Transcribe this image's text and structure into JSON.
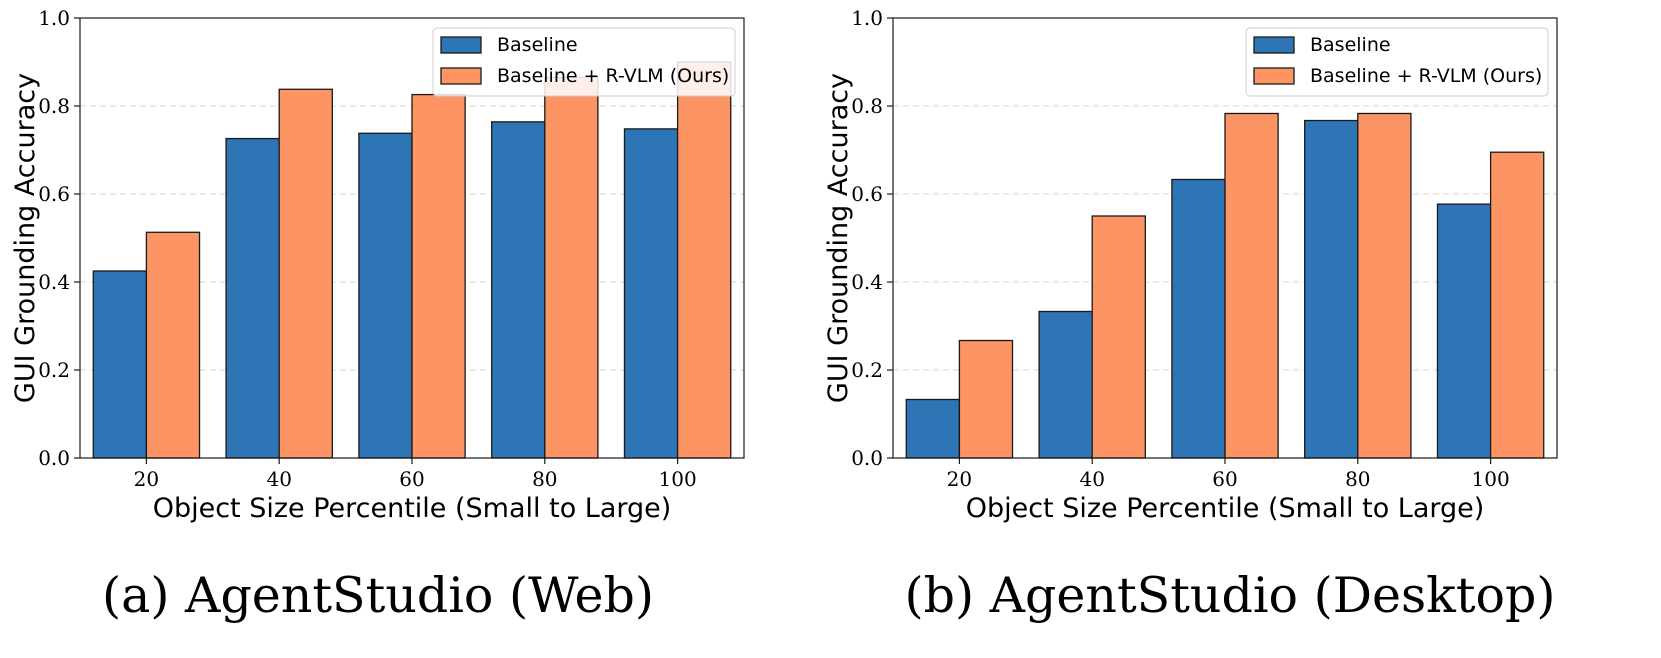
{
  "chart_data": [
    {
      "type": "bar",
      "id": "web",
      "categories": [
        "20",
        "40",
        "60",
        "80",
        "100"
      ],
      "series": [
        {
          "name": "Baseline",
          "color": "#2e75b6",
          "values": [
            0.425,
            0.726,
            0.738,
            0.764,
            0.748
          ]
        },
        {
          "name": "Baseline + R-VLM (Ours)",
          "color": "#fc9463",
          "values": [
            0.513,
            0.838,
            0.826,
            0.865,
            0.9
          ]
        }
      ],
      "xlabel": "Object Size Percentile (Small to Large)",
      "ylabel": "GUI Grounding Accuracy",
      "ylim": [
        0.0,
        1.0
      ],
      "yticks": [
        "0.0",
        "0.2",
        "0.4",
        "0.6",
        "0.8",
        "1.0"
      ],
      "grid": true,
      "legend_position": "top-right",
      "caption": "(a) AgentStudio (Web)"
    },
    {
      "type": "bar",
      "id": "desktop",
      "categories": [
        "20",
        "40",
        "60",
        "80",
        "100"
      ],
      "series": [
        {
          "name": "Baseline",
          "color": "#2e75b6",
          "values": [
            0.133,
            0.333,
            0.633,
            0.767,
            0.577
          ]
        },
        {
          "name": "Baseline + R-VLM (Ours)",
          "color": "#fc9463",
          "values": [
            0.267,
            0.55,
            0.783,
            0.783,
            0.695
          ]
        }
      ],
      "xlabel": "Object Size Percentile (Small to Large)",
      "ylabel": "GUI Grounding Accuracy",
      "ylim": [
        0.0,
        1.0
      ],
      "yticks": [
        "0.0",
        "0.2",
        "0.4",
        "0.6",
        "0.8",
        "1.0"
      ],
      "grid": true,
      "legend_position": "top-right",
      "caption": "(b) AgentStudio (Desktop)"
    }
  ]
}
